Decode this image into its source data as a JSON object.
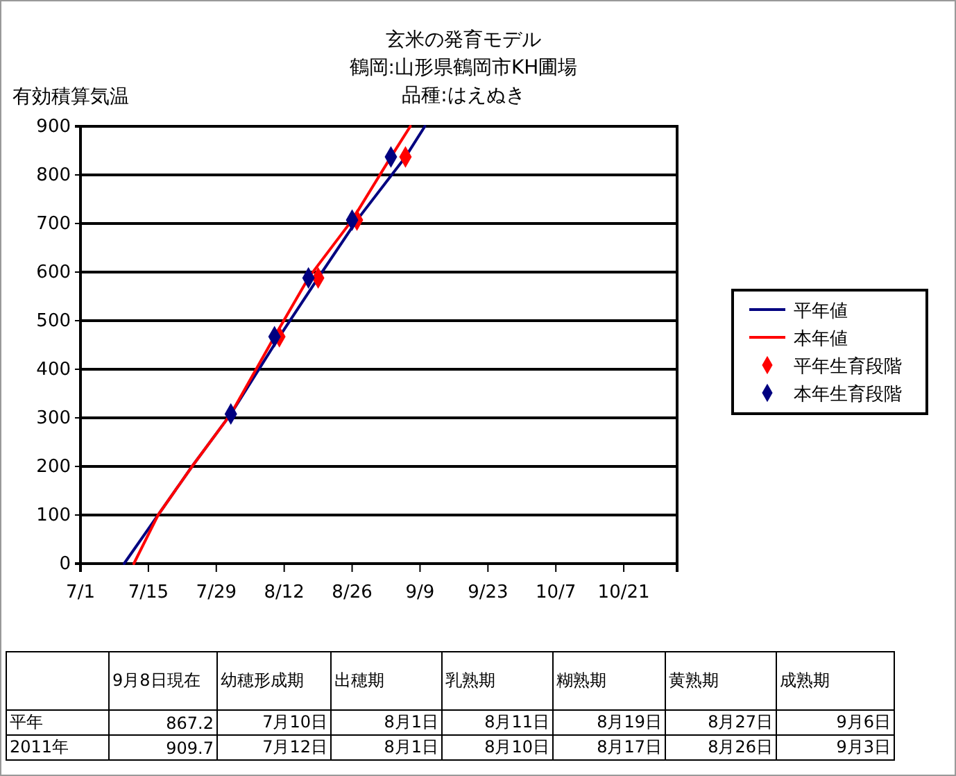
{
  "chart_data": [
    {
      "type": "line",
      "title": "玄米の発育モデル",
      "subtitle": "鶴岡:山形県鶴岡市KH圃場",
      "annotations": [
        "品種:はえぬき"
      ],
      "ylabel": "有効積算気温",
      "xlim": [
        "--07-01",
        "--11-01"
      ],
      "xticks": [
        {
          "value": "--07-01",
          "label": "7/1"
        },
        {
          "value": "--07-15",
          "label": "7/15"
        },
        {
          "value": "--07-29",
          "label": "7/29"
        },
        {
          "value": "--08-12",
          "label": "8/12"
        },
        {
          "value": "--08-26",
          "label": "8/26"
        },
        {
          "value": "--09-09",
          "label": "9/9"
        },
        {
          "value": "--09-23",
          "label": "9/23"
        },
        {
          "value": "--10-07",
          "label": "10/7"
        },
        {
          "value": "--10-21",
          "label": "10/21"
        }
      ],
      "ylim": [
        0,
        900
      ],
      "yticks": [
        0,
        100,
        200,
        300,
        400,
        500,
        600,
        700,
        800,
        900
      ],
      "grid": "y",
      "legend": "right",
      "series": [
        {
          "name": "平年値",
          "type": "line",
          "color": "#000080",
          "x": [
            "--07-10",
            "--07-17",
            "--07-24",
            "--08-01",
            "--08-11",
            "--08-19",
            "--08-27",
            "--09-06",
            "--09-10"
          ],
          "values": [
            0,
            100,
            200,
            308,
            467,
            588,
            707,
            837,
            900
          ]
        },
        {
          "name": "本年値",
          "type": "line",
          "color": "#ff0000",
          "x": [
            "--07-12",
            "--07-17",
            "--07-24",
            "--08-01",
            "--08-10",
            "--08-17",
            "--08-26",
            "--09-03",
            "--09-07"
          ],
          "values": [
            0,
            100,
            200,
            308,
            467,
            588,
            707,
            837,
            900
          ]
        },
        {
          "name": "平年生育段階",
          "type": "scatter",
          "marker": "diamond",
          "color": "#ff0000",
          "x": [
            "--08-11",
            "--08-19",
            "--08-27",
            "--09-06"
          ],
          "values": [
            467,
            588,
            707,
            837
          ]
        },
        {
          "name": "本年生育段階",
          "type": "scatter",
          "marker": "diamond",
          "color": "#000080",
          "x": [
            "--08-01",
            "--08-10",
            "--08-17",
            "--08-26",
            "--09-03"
          ],
          "values": [
            308,
            467,
            588,
            707,
            837
          ]
        }
      ]
    },
    {
      "type": "other",
      "categories": [
        "9月8日現在",
        "幼穂形成期",
        "出穂期",
        "乳熟期",
        "糊熟期",
        "黄熟期",
        "成熟期"
      ],
      "y_categories": [
        "平年",
        "2011年"
      ],
      "cell_labels": [
        [
          "867.2",
          "7月10日",
          "8月1日",
          "8月11日",
          "8月19日",
          "8月27日",
          "9月6日"
        ],
        [
          "909.7",
          "7月12日",
          "8月1日",
          "8月10日",
          "8月17日",
          "8月26日",
          "9月3日"
        ]
      ]
    }
  ]
}
